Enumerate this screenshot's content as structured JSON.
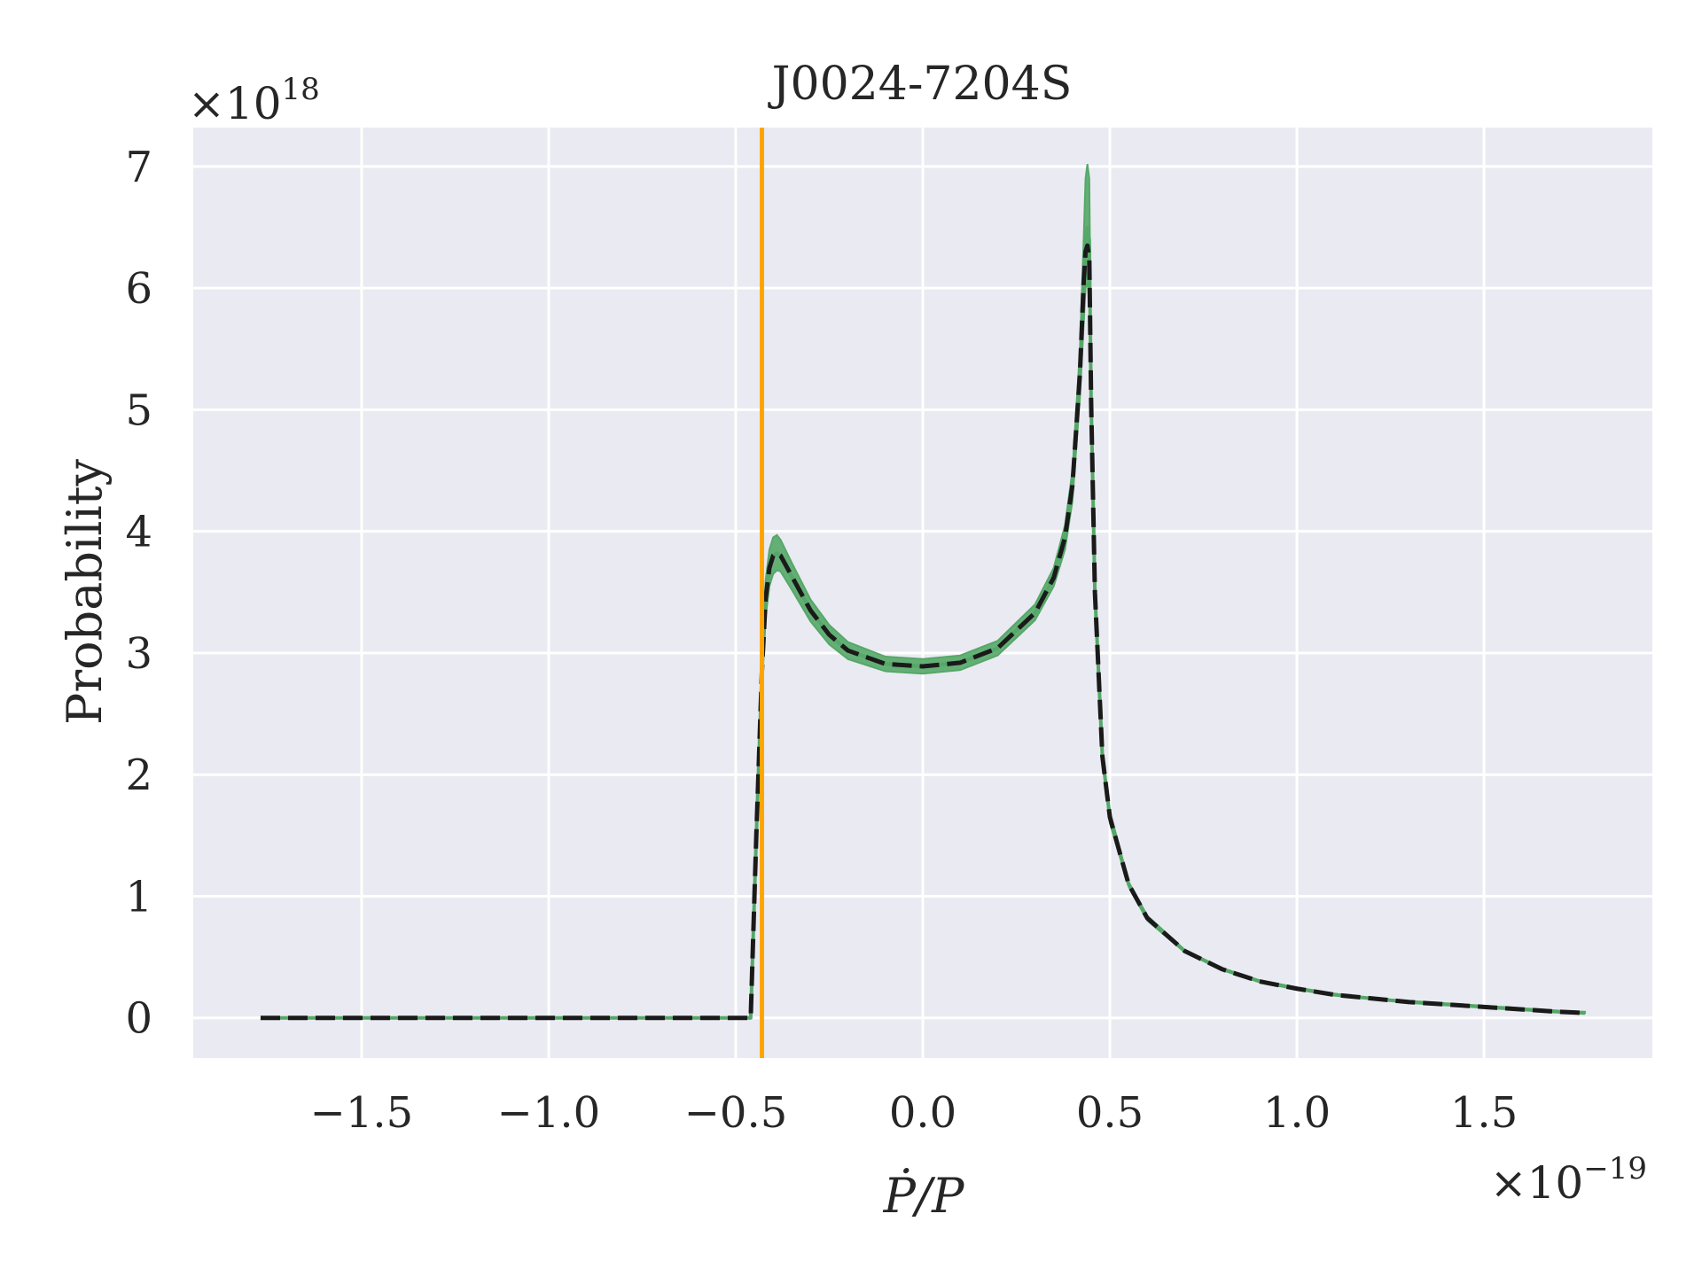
{
  "chart_data": {
    "type": "line",
    "title": "J0024-7204S",
    "xlabel": "Ṗ/P",
    "ylabel": "Probability",
    "x_multiplier": "×10",
    "x_multiplier_exp": "−19",
    "y_multiplier": "×10",
    "y_multiplier_exp": "18",
    "xlim": [
      -1.95,
      1.95
    ],
    "ylim": [
      -0.33,
      7.32
    ],
    "x_ticks": [
      -1.5,
      -1.0,
      -0.5,
      0.0,
      0.5,
      1.0,
      1.5
    ],
    "x_tick_labels": [
      "−1.5",
      "−1.0",
      "−0.5",
      "0.0",
      "0.5",
      "1.0",
      "1.5"
    ],
    "y_ticks": [
      0,
      1,
      2,
      3,
      4,
      5,
      6,
      7
    ],
    "y_tick_labels": [
      "0",
      "1",
      "2",
      "3",
      "4",
      "5",
      "6",
      "7"
    ],
    "grid": true,
    "vertical_line": {
      "x": -0.43,
      "color": "#ffa500"
    },
    "series": [
      {
        "style": "band",
        "color": "#55a868",
        "x": [
          -1.77,
          -0.46,
          -0.445,
          -0.43,
          -0.42,
          -0.41,
          -0.4,
          -0.39,
          -0.38,
          -0.35,
          -0.3,
          -0.25,
          -0.2,
          -0.1,
          0.0,
          0.1,
          0.2,
          0.3,
          0.35,
          0.38,
          0.4,
          0.42,
          0.43,
          0.435,
          0.44,
          0.445,
          0.45,
          0.46,
          0.48,
          0.5,
          0.55,
          0.6,
          0.7,
          0.8,
          0.9,
          1.0,
          1.1,
          1.2,
          1.3,
          1.4,
          1.5,
          1.6,
          1.7,
          1.77
        ],
        "upper": [
          0,
          0,
          1.6,
          3.0,
          3.6,
          3.85,
          3.95,
          3.97,
          3.93,
          3.74,
          3.44,
          3.23,
          3.09,
          2.97,
          2.95,
          2.98,
          3.1,
          3.4,
          3.7,
          4.05,
          4.5,
          5.5,
          6.4,
          6.9,
          7.02,
          6.9,
          5.3,
          3.6,
          2.2,
          1.7,
          1.12,
          0.84,
          0.56,
          0.41,
          0.31,
          0.25,
          0.2,
          0.16,
          0.14,
          0.12,
          0.1,
          0.08,
          0.06,
          0.05
        ],
        "lower": [
          0,
          0,
          1.4,
          2.7,
          3.3,
          3.55,
          3.65,
          3.68,
          3.67,
          3.52,
          3.26,
          3.07,
          2.95,
          2.85,
          2.83,
          2.86,
          2.98,
          3.27,
          3.55,
          3.85,
          4.25,
          5.1,
          5.7,
          6.0,
          6.05,
          5.9,
          4.8,
          3.4,
          2.1,
          1.6,
          1.08,
          0.8,
          0.54,
          0.4,
          0.3,
          0.24,
          0.19,
          0.16,
          0.13,
          0.11,
          0.09,
          0.07,
          0.05,
          0.04
        ]
      },
      {
        "style": "line",
        "color": "#55a868",
        "x": [
          -1.77,
          -0.46,
          -0.445,
          -0.43,
          -0.42,
          -0.41,
          -0.4,
          -0.39,
          -0.38,
          -0.35,
          -0.3,
          -0.25,
          -0.2,
          -0.1,
          0.0,
          0.1,
          0.2,
          0.3,
          0.35,
          0.38,
          0.4,
          0.42,
          0.43,
          0.435,
          0.44,
          0.445,
          0.45,
          0.46,
          0.48,
          0.5,
          0.55,
          0.6,
          0.7,
          0.8,
          0.9,
          1.0,
          1.1,
          1.2,
          1.3,
          1.4,
          1.5,
          1.6,
          1.7,
          1.77
        ],
        "y": [
          0,
          0,
          1.5,
          2.85,
          3.45,
          3.7,
          3.8,
          3.82,
          3.8,
          3.63,
          3.35,
          3.15,
          3.02,
          2.91,
          2.89,
          2.92,
          3.04,
          3.33,
          3.62,
          3.95,
          4.38,
          5.3,
          6.05,
          6.45,
          6.5,
          6.4,
          5.05,
          3.5,
          2.15,
          1.65,
          1.1,
          0.82,
          0.55,
          0.4,
          0.3,
          0.24,
          0.19,
          0.16,
          0.13,
          0.11,
          0.09,
          0.07,
          0.05,
          0.04
        ]
      },
      {
        "style": "dashed",
        "color": "#1a1a1a",
        "x": [
          -1.77,
          -0.46,
          -0.445,
          -0.43,
          -0.42,
          -0.41,
          -0.4,
          -0.39,
          -0.38,
          -0.35,
          -0.3,
          -0.25,
          -0.2,
          -0.1,
          0.0,
          0.1,
          0.2,
          0.3,
          0.35,
          0.38,
          0.4,
          0.42,
          0.43,
          0.435,
          0.44,
          0.445,
          0.45,
          0.46,
          0.48,
          0.5,
          0.55,
          0.6,
          0.7,
          0.8,
          0.9,
          1.0,
          1.1,
          1.2,
          1.3,
          1.4,
          1.5,
          1.6,
          1.7,
          1.77
        ],
        "y": [
          0,
          0,
          1.5,
          2.85,
          3.45,
          3.7,
          3.8,
          3.82,
          3.8,
          3.63,
          3.35,
          3.15,
          3.02,
          2.91,
          2.89,
          2.92,
          3.04,
          3.33,
          3.62,
          3.95,
          4.38,
          5.3,
          6.05,
          6.3,
          6.35,
          6.25,
          5.05,
          3.5,
          2.15,
          1.65,
          1.1,
          0.82,
          0.55,
          0.4,
          0.3,
          0.24,
          0.19,
          0.16,
          0.13,
          0.11,
          0.09,
          0.07,
          0.05,
          0.04
        ]
      }
    ]
  }
}
